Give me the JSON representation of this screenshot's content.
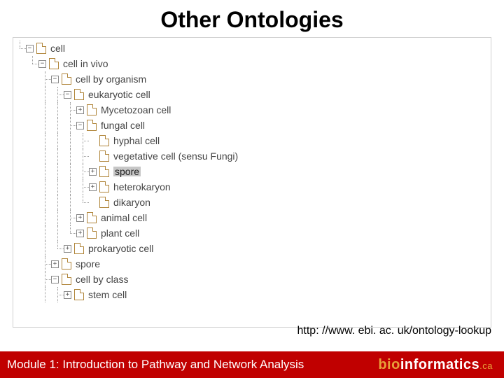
{
  "title": "Other Ontologies",
  "url": "http: //www. ebi. ac. uk/ontology-lookup",
  "footer": {
    "module": "Module 1: Introduction to Pathway and Network Analysis",
    "logo_part1": "bio",
    "logo_part2": "informatics",
    "logo_suffix": ".ca"
  },
  "colors": {
    "footer_bg": "#c00000",
    "footer_text": "#ffffff",
    "logo_accent": "#e8a03a",
    "tree_text": "#444444",
    "tree_border": "#d0d0d0",
    "selected_bg": "#c7c7c7"
  },
  "tree": [
    {
      "id": 0,
      "depth": 0,
      "toggle": "minus",
      "conns": [
        "l"
      ],
      "label": "cell",
      "selected": false
    },
    {
      "id": 1,
      "depth": 1,
      "toggle": "minus",
      "conns": [
        "b",
        "l"
      ],
      "label": "cell in vivo",
      "selected": false
    },
    {
      "id": 2,
      "depth": 2,
      "toggle": "minus",
      "conns": [
        "b",
        "b",
        "t"
      ],
      "label": "cell by organism",
      "selected": false
    },
    {
      "id": 3,
      "depth": 3,
      "toggle": "minus",
      "conns": [
        "b",
        "b",
        "v",
        "t"
      ],
      "label": "eukaryotic cell",
      "selected": false
    },
    {
      "id": 4,
      "depth": 4,
      "toggle": "plus",
      "conns": [
        "b",
        "b",
        "v",
        "v",
        "t"
      ],
      "label": "Mycetozoan cell",
      "selected": false
    },
    {
      "id": 5,
      "depth": 4,
      "toggle": "minus",
      "conns": [
        "b",
        "b",
        "v",
        "v",
        "t"
      ],
      "label": "fungal cell",
      "selected": false
    },
    {
      "id": 6,
      "depth": 5,
      "toggle": "none",
      "conns": [
        "b",
        "b",
        "v",
        "v",
        "v",
        "t"
      ],
      "label": "hyphal cell",
      "selected": false
    },
    {
      "id": 7,
      "depth": 5,
      "toggle": "none",
      "conns": [
        "b",
        "b",
        "v",
        "v",
        "v",
        "t"
      ],
      "label": "vegetative cell (sensu Fungi)",
      "selected": false
    },
    {
      "id": 8,
      "depth": 5,
      "toggle": "plus",
      "conns": [
        "b",
        "b",
        "v",
        "v",
        "v",
        "t"
      ],
      "label": "spore",
      "selected": true
    },
    {
      "id": 9,
      "depth": 5,
      "toggle": "plus",
      "conns": [
        "b",
        "b",
        "v",
        "v",
        "v",
        "t"
      ],
      "label": "heterokaryon",
      "selected": false
    },
    {
      "id": 10,
      "depth": 5,
      "toggle": "none",
      "conns": [
        "b",
        "b",
        "v",
        "v",
        "v",
        "l"
      ],
      "label": "dikaryon",
      "selected": false
    },
    {
      "id": 11,
      "depth": 4,
      "toggle": "plus",
      "conns": [
        "b",
        "b",
        "v",
        "v",
        "t"
      ],
      "label": "animal cell",
      "selected": false
    },
    {
      "id": 12,
      "depth": 4,
      "toggle": "plus",
      "conns": [
        "b",
        "b",
        "v",
        "v",
        "l"
      ],
      "label": "plant cell",
      "selected": false
    },
    {
      "id": 13,
      "depth": 3,
      "toggle": "plus",
      "conns": [
        "b",
        "b",
        "v",
        "l"
      ],
      "label": "prokaryotic cell",
      "selected": false
    },
    {
      "id": 14,
      "depth": 2,
      "toggle": "plus",
      "conns": [
        "b",
        "b",
        "t"
      ],
      "label": "spore",
      "selected": false
    },
    {
      "id": 15,
      "depth": 2,
      "toggle": "minus",
      "conns": [
        "b",
        "b",
        "t"
      ],
      "label": "cell by class",
      "selected": false
    },
    {
      "id": 16,
      "depth": 3,
      "toggle": "plus",
      "conns": [
        "b",
        "b",
        "v",
        "t"
      ],
      "label": "stem cell",
      "selected": false
    }
  ]
}
